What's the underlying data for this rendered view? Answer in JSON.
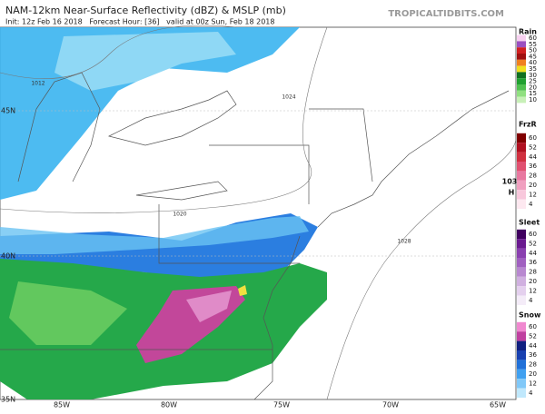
{
  "header": {
    "title": "NAM-12km Near-Surface Reflectivity (dBZ) & MSLP (mb)",
    "subtitle": "Init: 12z Feb 16 2018   Forecast Hour: [36]   valid at 00z Sun, Feb 18 2018",
    "site": "TROPICALTIDBITS.COM"
  },
  "latitude_labels": [
    "45N",
    "40N",
    "35N"
  ],
  "longitude_labels": [
    "85W",
    "80W",
    "75W",
    "70W",
    "65W"
  ],
  "isobar_labels": [
    "1012",
    "1020",
    "1024",
    "1028",
    "103",
    "H"
  ],
  "legend": [
    {
      "title": "Rain",
      "ticks": [
        "60",
        "55",
        "50",
        "45",
        "40",
        "35",
        "30",
        "25",
        "20",
        "15",
        "10"
      ]
    },
    {
      "title": "FrzR",
      "ticks": [
        "60",
        "52",
        "44",
        "36",
        "28",
        "20",
        "12",
        "4"
      ]
    },
    {
      "title": "Sleet",
      "ticks": [
        "60",
        "52",
        "44",
        "36",
        "28",
        "20",
        "12",
        "4"
      ]
    },
    {
      "title": "Snow",
      "ticks": [
        "60",
        "52",
        "44",
        "36",
        "28",
        "20",
        "12",
        "4"
      ]
    }
  ]
}
